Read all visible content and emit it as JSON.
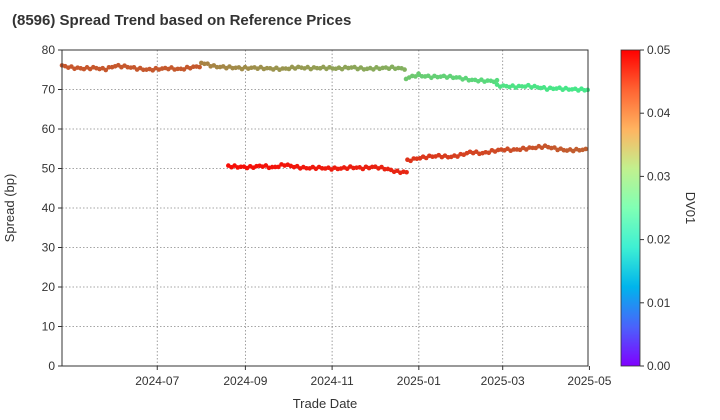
{
  "chart_data": {
    "type": "scatter",
    "title": "(8596)   Spread Trend based on Reference Prices",
    "xlabel": "Trade Date",
    "ylabel": "Spread (bp)",
    "colorbar_label": "DV01",
    "x_range": [
      "2024-04-25",
      "2025-04-30"
    ],
    "ylim": [
      0,
      80
    ],
    "y_ticks": [
      0,
      10,
      20,
      30,
      40,
      50,
      60,
      70,
      80
    ],
    "y_tick_labels": [
      "0",
      "10",
      "20",
      "30",
      "40",
      "50",
      "60",
      "70",
      "80"
    ],
    "x_ticks": [
      "2024-07-01",
      "2024-09-01",
      "2024-11-01",
      "2025-01-01",
      "2025-03-01",
      "2025-05-01"
    ],
    "x_tick_labels": [
      "2024-07",
      "2024-09",
      "2024-11",
      "2025-01",
      "2025-03",
      "2025-05"
    ],
    "colorbar_range": [
      0,
      0.05
    ],
    "colorbar_ticks": [
      0,
      0.01,
      0.02,
      0.03,
      0.04,
      0.05
    ],
    "colorbar_tick_labels": [
      "0.00",
      "0.01",
      "0.02",
      "0.03",
      "0.04",
      "0.05"
    ],
    "colormap": "rainbow",
    "grid": true,
    "series": [
      {
        "segments": [
          {
            "x_start": "2024-04-25",
            "x_end": "2024-08-01",
            "y": [
              76.0,
              75.5,
              75.3,
              75.5,
              75.1,
              76.0,
              75.8,
              75.3,
              75.0,
              75.2,
              75.4,
              75.1,
              75.6,
              75.9
            ],
            "dv01": [
              0.0445,
              0.0443
            ]
          },
          {
            "x_start": "2024-08-01",
            "x_end": "2024-12-23",
            "y": [
              76.8,
              75.8,
              75.6,
              75.4,
              75.5,
              75.3,
              75.2,
              75.6,
              75.4,
              75.5,
              75.3,
              75.6,
              75.2,
              75.4,
              75.5,
              75.2
            ],
            "dv01": [
              0.0415,
              0.0378
            ]
          },
          {
            "x_start": "2024-12-23",
            "x_end": "2025-01-01",
            "y": [
              72.8,
              73.3,
              73.8
            ],
            "dv01": [
              0.0358,
              0.0356
            ]
          },
          {
            "x_start": "2025-01-01",
            "x_end": "2025-02-25",
            "y": [
              73.5,
              73.2,
              73.3,
              73.0,
              72.4,
              72.2,
              72.1
            ],
            "dv01": [
              0.0352,
              0.0336
            ]
          },
          {
            "x_start": "2025-02-25",
            "x_end": "2025-04-30",
            "y": [
              71.0,
              70.8,
              70.7,
              70.9,
              70.6,
              70.2,
              70.3,
              70.1,
              70.0,
              69.9
            ],
            "dv01": [
              0.0328,
              0.0318
            ]
          }
        ]
      },
      {
        "segments": [
          {
            "x_start": "2024-08-20",
            "x_end": "2024-12-24",
            "y": [
              50.6,
              50.4,
              50.3,
              50.7,
              50.2,
              51.0,
              50.4,
              50.1,
              50.2,
              50.0,
              50.0,
              50.3,
              50.1,
              50.4,
              50.0,
              49.2,
              49.0
            ],
            "dv01": [
              0.0492,
              0.0476
            ]
          },
          {
            "x_start": "2024-12-24",
            "x_end": "2025-04-30",
            "y": [
              52.0,
              52.6,
              53.0,
              53.2,
              52.9,
              53.4,
              54.2,
              53.8,
              54.4,
              54.8,
              54.7,
              55.0,
              55.3,
              55.6,
              55.0,
              54.6,
              54.7,
              54.8
            ],
            "dv01": [
              0.0468,
              0.0438
            ]
          }
        ]
      }
    ]
  }
}
